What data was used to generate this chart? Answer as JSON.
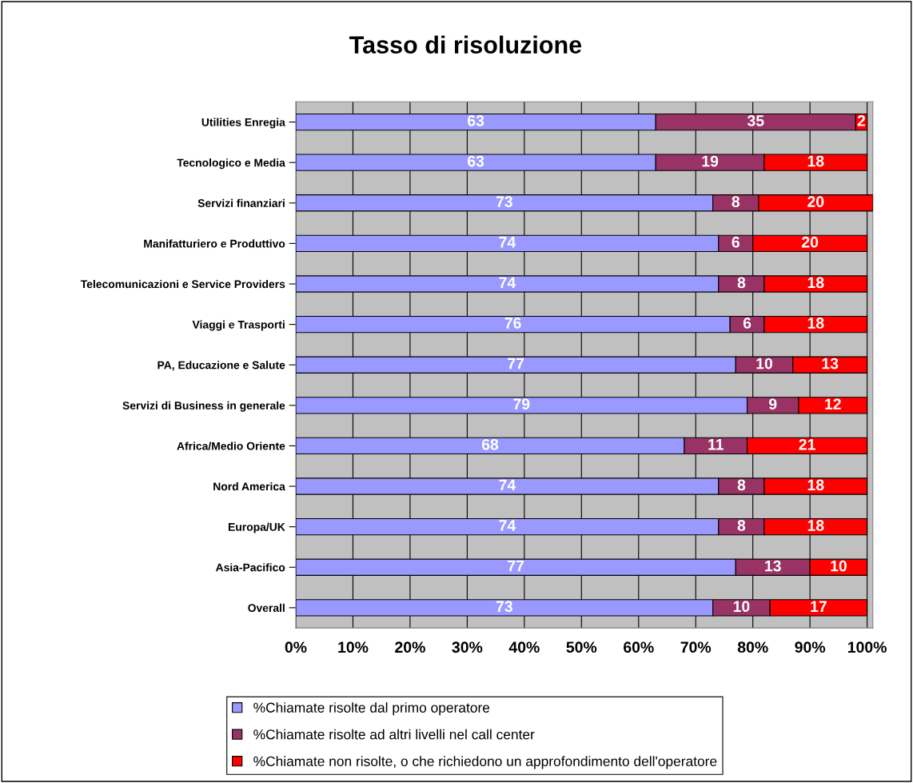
{
  "chart_data": {
    "type": "bar",
    "title": "Tasso di risoluzione",
    "orientation": "horizontal",
    "stacked": true,
    "categories": [
      "Utilities Enregia",
      "Tecnologico e Media",
      "Servizi finanziari",
      "Manifatturiero e Produttivo",
      "Telecomunicazioni e Service Providers",
      "Viaggi e Trasporti",
      "PA, Educazione e Salute",
      "Servizi di Business in generale",
      "Africa/Medio Oriente",
      "Nord America",
      "Europa/UK",
      "Asia-Pacifico",
      "Overall"
    ],
    "series": [
      {
        "name": "%Chiamate risolte dal primo operatore",
        "color": "#9999ff",
        "values": [
          63,
          63,
          73,
          74,
          74,
          76,
          77,
          79,
          68,
          74,
          74,
          77,
          73
        ]
      },
      {
        "name": "%Chiamate risolte ad altri livelli nel call center",
        "color": "#993366",
        "values": [
          35,
          19,
          8,
          6,
          8,
          6,
          10,
          9,
          11,
          8,
          8,
          13,
          10
        ]
      },
      {
        "name": "%Chiamate non risolte, o che richiedono un approfondimento dell'operatore",
        "color": "#ff0000",
        "values": [
          2,
          18,
          20,
          20,
          18,
          18,
          13,
          12,
          21,
          18,
          18,
          10,
          17
        ]
      }
    ],
    "xlim": [
      0,
      101
    ],
    "xticks": [
      {
        "value": 0,
        "label": "0%"
      },
      {
        "value": 10,
        "label": "10%"
      },
      {
        "value": 20,
        "label": "20%"
      },
      {
        "value": 30,
        "label": "30%"
      },
      {
        "value": 40,
        "label": "40%"
      },
      {
        "value": 50,
        "label": "50%"
      },
      {
        "value": 60,
        "label": "60%"
      },
      {
        "value": 70,
        "label": "70%"
      },
      {
        "value": 80,
        "label": "80%"
      },
      {
        "value": 90,
        "label": "90%"
      },
      {
        "value": 100,
        "label": "100%"
      }
    ],
    "grid": "x",
    "legend": "bottom",
    "data_labels": true
  }
}
